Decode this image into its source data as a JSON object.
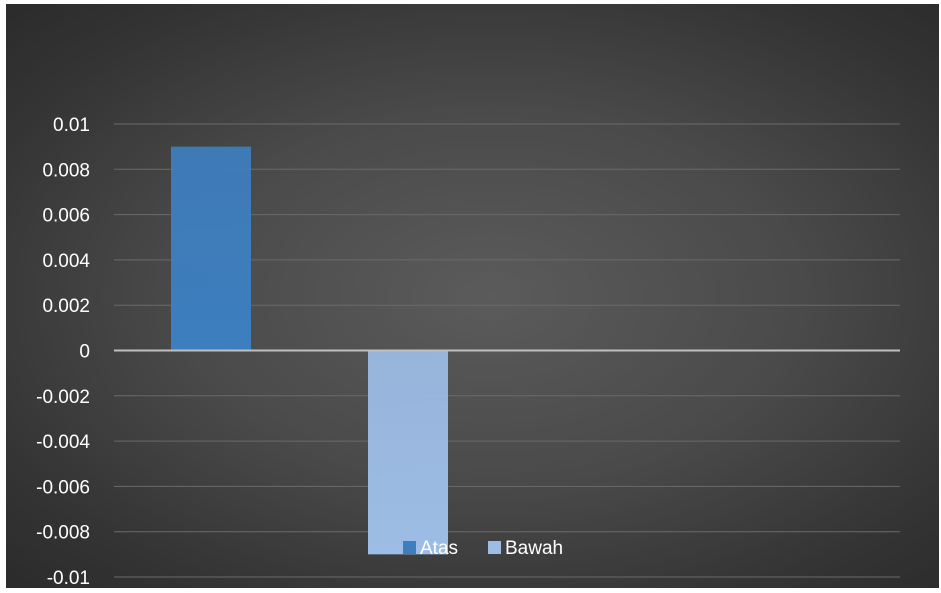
{
  "chart_data": {
    "type": "bar",
    "categories": [
      ""
    ],
    "series": [
      {
        "name": "Atas",
        "values": [
          0.009
        ],
        "color": "#3d7ebf"
      },
      {
        "name": "Bawah",
        "values": [
          -0.009
        ],
        "color": "#9dbde6"
      }
    ],
    "title": "",
    "xlabel": "",
    "ylabel": "",
    "ylim": [
      -0.01,
      0.01
    ],
    "yticks": [
      0.01,
      0.008,
      0.006,
      0.004,
      0.002,
      0,
      -0.002,
      -0.004,
      -0.006,
      -0.008,
      -0.01
    ],
    "ytick_labels": [
      "0.01",
      "0.008",
      "0.006",
      "0.004",
      "0.002",
      "0",
      "-0.002",
      "-0.004",
      "-0.006",
      "-0.008",
      "-0.01"
    ],
    "grid": true,
    "legend": "bottom",
    "background": "#4a4a4a",
    "gridline_color": "#6a6a6a",
    "zero_line_color": "#bfbfbf",
    "text_color": "#ffffff"
  }
}
